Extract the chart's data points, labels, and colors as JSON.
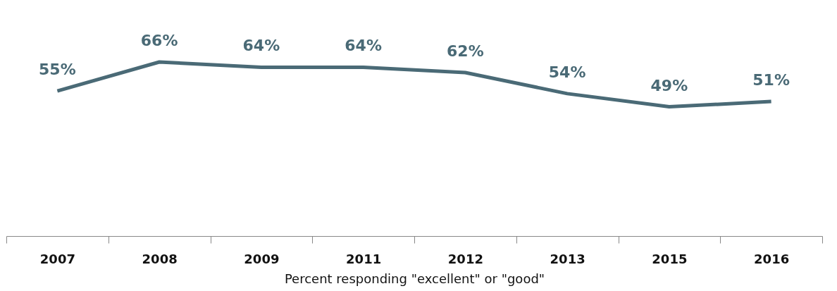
{
  "chart_data": {
    "type": "line",
    "xlabel": "Percent responding \"excellent\" or \"good\"",
    "categories": [
      "2007",
      "2008",
      "2009",
      "2011",
      "2012",
      "2013",
      "2015",
      "2016"
    ],
    "series": [
      {
        "color": "#4a6a76",
        "values": [
          55,
          66,
          64,
          64,
          62,
          54,
          49,
          51
        ],
        "value_labels": [
          "55%",
          "66%",
          "64%",
          "64%",
          "62%",
          "54%",
          "49%",
          "51%"
        ]
      }
    ],
    "tick_labels": "x",
    "line_style": "solid"
  }
}
